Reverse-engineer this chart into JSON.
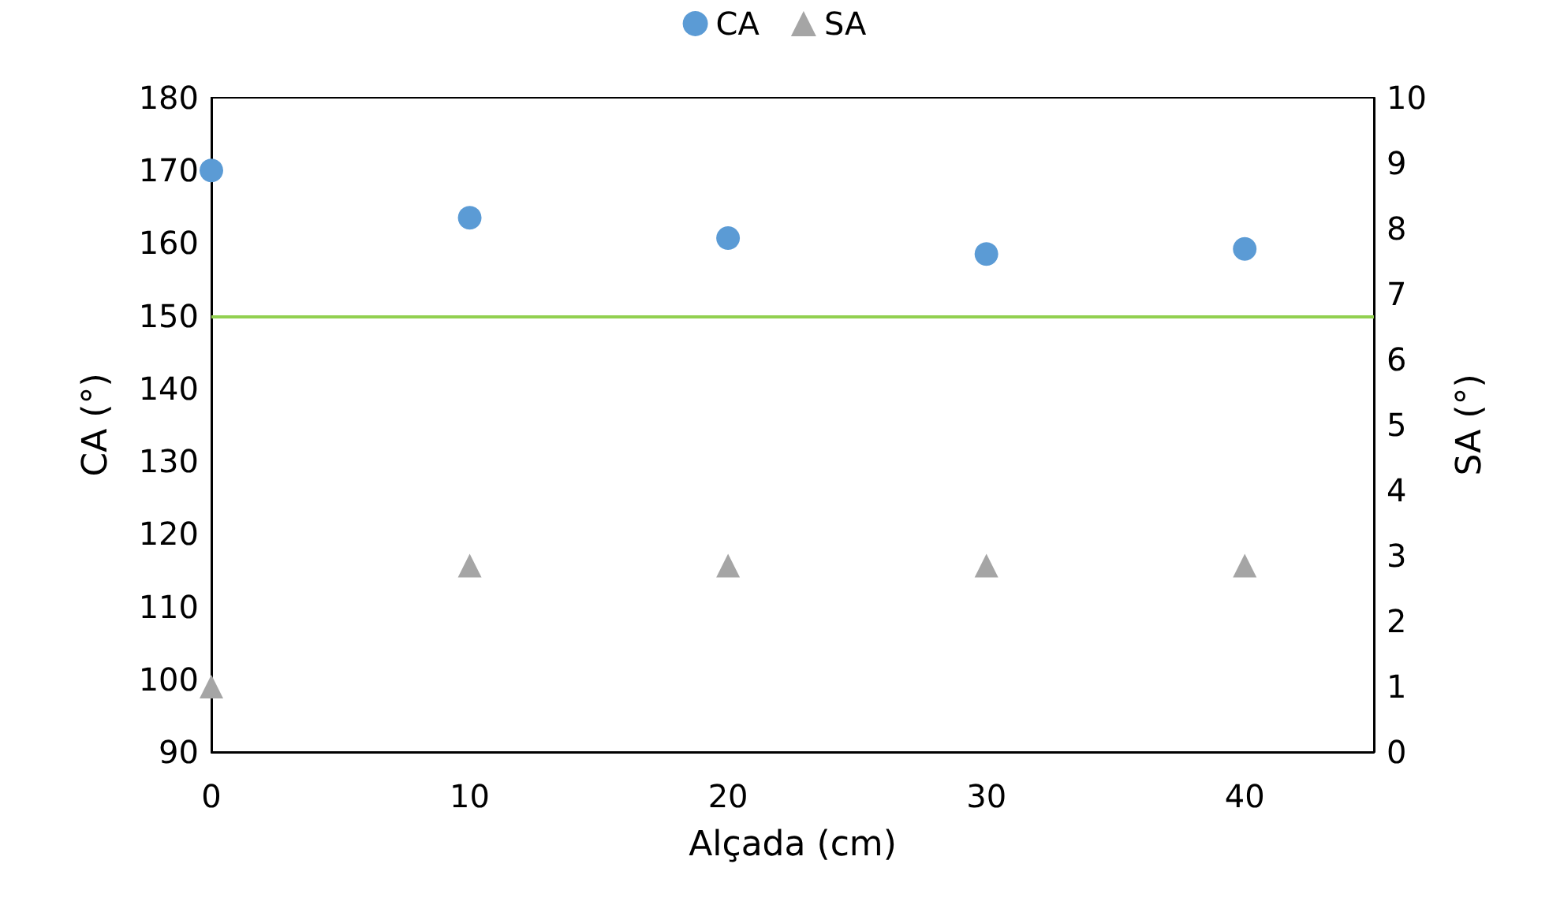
{
  "chart_data": {
    "type": "scatter",
    "xlabel": "Alçada (cm)",
    "ylabel": "CA (°)",
    "y2label": "SA (°)",
    "x": [
      0,
      10,
      20,
      30,
      40
    ],
    "series": [
      {
        "name": "CA",
        "color": "#5b9bd5",
        "marker": "circle",
        "values": [
          170,
          163.5,
          160.7,
          158.5,
          159.2
        ]
      },
      {
        "name": "SA",
        "color": "#a5a5a5",
        "marker": "triangle",
        "axis": "y2",
        "values": [
          1.0,
          2.85,
          2.85,
          2.85,
          2.85
        ]
      }
    ],
    "xlim": [
      0,
      45
    ],
    "xticks": [
      0,
      10,
      20,
      30,
      40
    ],
    "ylim": [
      90,
      180
    ],
    "yticks": [
      90,
      100,
      110,
      120,
      130,
      140,
      150,
      160,
      170,
      180
    ],
    "y2lim": [
      0,
      10
    ],
    "y2ticks": [
      0,
      1,
      2,
      3,
      4,
      5,
      6,
      7,
      8,
      9,
      10
    ],
    "ref_lines": [
      {
        "axis": "y",
        "value": 150,
        "color": "#92d050"
      }
    ],
    "grid": false,
    "legend": "top"
  }
}
